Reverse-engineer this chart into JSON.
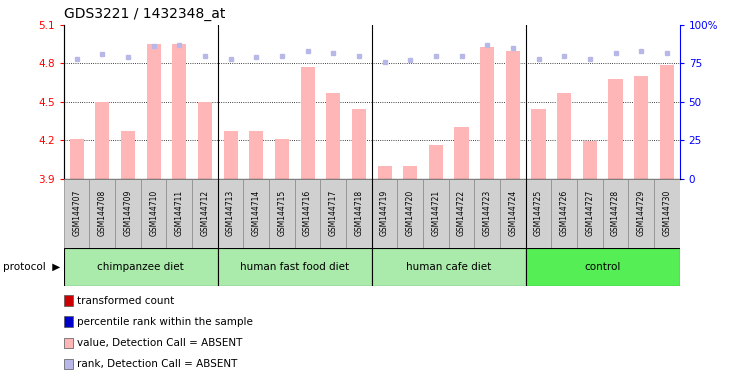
{
  "title": "GDS3221 / 1432348_at",
  "samples": [
    "GSM144707",
    "GSM144708",
    "GSM144709",
    "GSM144710",
    "GSM144711",
    "GSM144712",
    "GSM144713",
    "GSM144714",
    "GSM144715",
    "GSM144716",
    "GSM144717",
    "GSM144718",
    "GSM144719",
    "GSM144720",
    "GSM144721",
    "GSM144722",
    "GSM144723",
    "GSM144724",
    "GSM144725",
    "GSM144726",
    "GSM144727",
    "GSM144728",
    "GSM144729",
    "GSM144730"
  ],
  "values": [
    4.21,
    4.5,
    4.27,
    4.95,
    4.95,
    4.5,
    4.27,
    4.27,
    4.21,
    4.77,
    4.57,
    4.44,
    4.0,
    4.0,
    4.16,
    4.3,
    4.93,
    4.9,
    4.44,
    4.57,
    4.19,
    4.68,
    4.7,
    4.79
  ],
  "ranks": [
    78,
    81,
    79,
    86,
    87,
    80,
    78,
    79,
    80,
    83,
    82,
    80,
    76,
    77,
    80,
    80,
    87,
    85,
    78,
    80,
    78,
    82,
    83,
    82
  ],
  "detection_calls": [
    "A",
    "A",
    "A",
    "A",
    "A",
    "A",
    "A",
    "A",
    "A",
    "A",
    "A",
    "A",
    "A",
    "A",
    "A",
    "A",
    "A",
    "A",
    "A",
    "A",
    "A",
    "A",
    "A",
    "A"
  ],
  "groups": [
    {
      "label": "chimpanzee diet",
      "start": 0,
      "end": 5
    },
    {
      "label": "human fast food diet",
      "start": 6,
      "end": 11
    },
    {
      "label": "human cafe diet",
      "start": 12,
      "end": 17
    },
    {
      "label": "control",
      "start": 18,
      "end": 23
    }
  ],
  "group_colors": [
    "#b0f0b0",
    "#b0f0b0",
    "#b0f0b0",
    "#55dd55"
  ],
  "ylim_left": [
    3.9,
    5.1
  ],
  "ylim_right": [
    0,
    100
  ],
  "yticks_left": [
    3.9,
    4.2,
    4.5,
    4.8,
    5.1
  ],
  "yticks_right": [
    0,
    25,
    50,
    75,
    100
  ],
  "bar_color_absent": "#ffb6b6",
  "dot_color_absent": "#b8b8e8",
  "plot_bg": "#ffffff",
  "sample_box_color": "#d0d0d0",
  "legend_items": [
    {
      "color": "#cc0000",
      "label": "transformed count"
    },
    {
      "color": "#0000cc",
      "label": "percentile rank within the sample"
    },
    {
      "color": "#ffb6b6",
      "label": "value, Detection Call = ABSENT"
    },
    {
      "color": "#b8b8e8",
      "label": "rank, Detection Call = ABSENT"
    }
  ]
}
